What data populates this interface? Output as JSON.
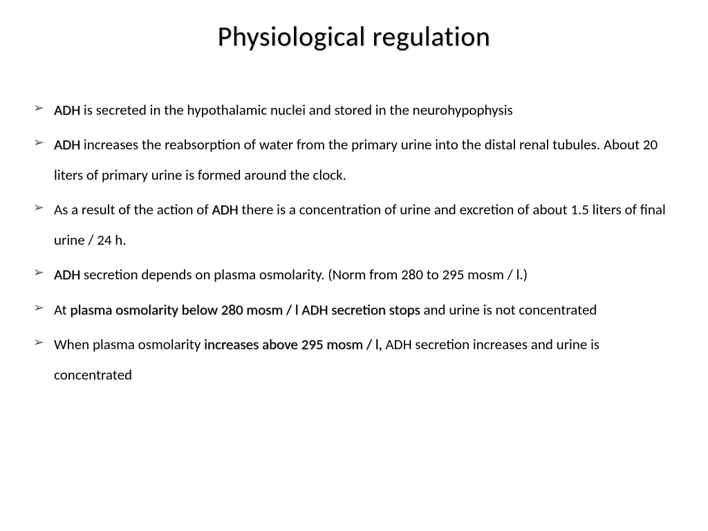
{
  "title": "Physiological regulation",
  "bullets": [
    {
      "segments": [
        {
          "text": "ADH ",
          "bold": true
        },
        {
          "text": "is secreted in the hypothalamic nuclei and stored in the neurohypophysis",
          "bold": false
        }
      ]
    },
    {
      "segments": [
        {
          "text": "ADH ",
          "bold": true
        },
        {
          "text": "increases the reabsorption of water from the primary urine into the distal renal tubules. About 20 liters of primary urine is formed around the clock.",
          "bold": false
        }
      ]
    },
    {
      "segments": [
        {
          "text": "As a result of the action of ",
          "bold": false
        },
        {
          "text": "ADH ",
          "bold": true
        },
        {
          "text": "there is a concentration of urine and excretion of about 1.5 liters of final urine / 24 h.",
          "bold": false
        }
      ]
    },
    {
      "segments": [
        {
          "text": "ADH ",
          "bold": true
        },
        {
          "text": "secretion depends on plasma osmolarity. (Norm from 280 to 295 mosm / l.)",
          "bold": false
        }
      ]
    },
    {
      "segments": [
        {
          "text": "At ",
          "bold": false
        },
        {
          "text": "plasma osmolarity below 280 mosm / l ADH secretion stops ",
          "bold": true
        },
        {
          "text": "and urine is not concentrated",
          "bold": false
        }
      ]
    },
    {
      "segments": [
        {
          "text": "When plasma osmolarity ",
          "bold": false
        },
        {
          "text": "increases above 295 mosm / l, ",
          "bold": true
        },
        {
          "text": "ADH secretion increases and urine is concentrated",
          "bold": false
        }
      ]
    }
  ],
  "styling": {
    "background_color": "#ffffff",
    "text_color": "#000000",
    "title_fontsize": 40,
    "body_fontsize": 21,
    "bullet_glyph": "➢",
    "bullet_color": "#555555",
    "font_family": "Calibri",
    "line_height": 2.1,
    "title_shadow": "1px 1px 2px rgba(0,0,0,0.25)"
  }
}
